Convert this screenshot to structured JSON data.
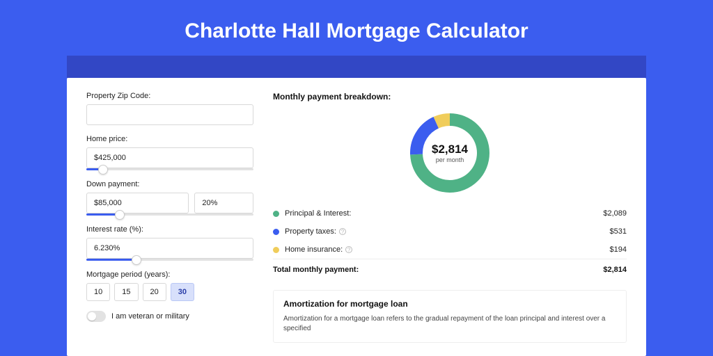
{
  "page": {
    "title": "Charlotte Hall Mortgage Calculator",
    "background_color": "#3b5def",
    "stripe_color": "#3247c5"
  },
  "form": {
    "zip": {
      "label": "Property Zip Code:",
      "value": ""
    },
    "home_price": {
      "label": "Home price:",
      "value": "$425,000",
      "slider_pct": 10
    },
    "down_payment": {
      "label": "Down payment:",
      "value": "$85,000",
      "pct_value": "20%",
      "slider_pct": 20
    },
    "interest_rate": {
      "label": "Interest rate (%):",
      "value": "6.230%",
      "slider_pct": 30
    },
    "period": {
      "label": "Mortgage period (years):",
      "options": [
        "10",
        "15",
        "20",
        "30"
      ],
      "selected": "30"
    },
    "veteran": {
      "label": "I am veteran or military",
      "checked": false
    }
  },
  "breakdown": {
    "title": "Monthly payment breakdown:",
    "donut": {
      "amount": "$2,814",
      "sub": "per month",
      "slices": [
        {
          "key": "principal_interest",
          "value": 2089,
          "pct": 74.2,
          "color": "#4fb286"
        },
        {
          "key": "property_taxes",
          "value": 531,
          "pct": 18.9,
          "color": "#3b5def"
        },
        {
          "key": "home_insurance",
          "value": 194,
          "pct": 6.9,
          "color": "#f0cd5b"
        }
      ],
      "thickness": 18
    },
    "rows": [
      {
        "label": "Principal & Interest:",
        "value": "$2,089",
        "color": "#4fb286",
        "info": false
      },
      {
        "label": "Property taxes:",
        "value": "$531",
        "color": "#3b5def",
        "info": true
      },
      {
        "label": "Home insurance:",
        "value": "$194",
        "color": "#f0cd5b",
        "info": true
      }
    ],
    "total": {
      "label": "Total monthly payment:",
      "value": "$2,814"
    }
  },
  "amortization": {
    "title": "Amortization for mortgage loan",
    "text": "Amortization for a mortgage loan refers to the gradual repayment of the loan principal and interest over a specified"
  }
}
